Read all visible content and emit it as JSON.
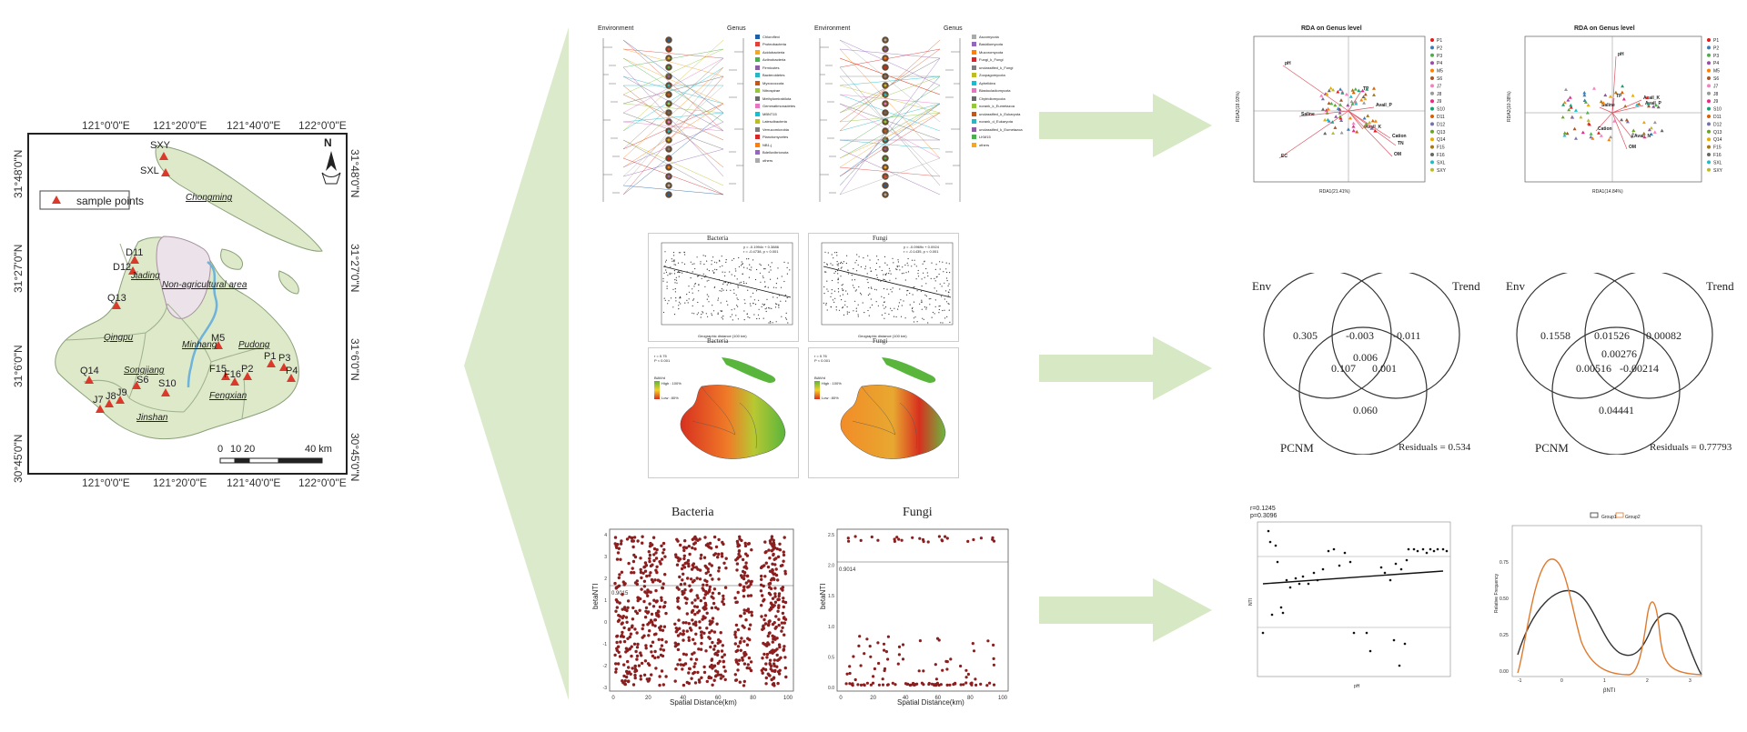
{
  "map": {
    "top_ticks": [
      "121°0'0\"E",
      "121°20'0\"E",
      "121°40'0\"E",
      "122°0'0\"E"
    ],
    "bottom_ticks": [
      "121°0'0\"E",
      "121°20'0\"E",
      "121°40'0\"E",
      "122°0'0\"E"
    ],
    "left_ticks": [
      "31°48'0\"N",
      "31°27'0\"N",
      "31°6'0\"N",
      "30°45'0\"N"
    ],
    "right_ticks": [
      "31°48'0\"N",
      "31°27'0\"N",
      "31°6'0\"N",
      "30°45'0\"N"
    ],
    "legend_label": "sample points",
    "north": "N",
    "districts": [
      "Chongming",
      "Jiading",
      "Non-agricultural area",
      "Qingpu",
      "Minhang",
      "Pudong",
      "Songjiang",
      "Fengxian",
      "Jinshan"
    ],
    "points": [
      "SXY",
      "SXL",
      "D11",
      "D12",
      "Q13",
      "M5",
      "P1",
      "P3",
      "P2",
      "P4",
      "F15",
      "F16",
      "Q14",
      "S6",
      "S10",
      "J7",
      "J8",
      "J9"
    ],
    "scale_labels": [
      "0",
      "10",
      "20",
      "40 km"
    ],
    "colors": {
      "land": "#dde9c8",
      "urban": "#ece3ea",
      "river": "#6fb3da",
      "marker": "#d93a2b"
    }
  },
  "network": {
    "left": {
      "env_label": "Environment",
      "genus_label": "Genus",
      "legend": [
        "Chloroflexi",
        "Proteobacteria",
        "Acidobacteria",
        "Actinobacteria",
        "Firmicutes",
        "Bacteroidetes",
        "Myxococcota",
        "Nitrospirae",
        "Methylomirabilota",
        "Gemmatimonadetes",
        "MBNT15",
        "Latescibacteria",
        "Verrucomicrobia",
        "Planctomycetes",
        "NB1-j",
        "Bdellovibrionota",
        "others"
      ]
    },
    "right": {
      "env_label": "Environment",
      "genus_label": "Genus",
      "legend": [
        "Ascomycota",
        "Basidiomycota",
        "Mucoromycota",
        "Fungi_k_Fungi",
        "unclassified_k_Fungi",
        "Zoopagomycota",
        "Aphelidea",
        "Blastocladiomycota",
        "Chytridiomycota",
        "norank_k_Eumetazoa",
        "unclassified_k_Eukaryota",
        "norank_d_Eukaryota",
        "unclassified_k_Eumetazoa",
        "LKM15",
        "others"
      ]
    }
  },
  "decay": {
    "bacteria": {
      "title": "Bacteria",
      "stats": [
        "y = -0.1994x + 0.3886",
        "r = -0.4738, p < 0.001"
      ],
      "xlabel": "Geographic distance (100 km)"
    },
    "fungi": {
      "title": "Fungi",
      "stats": [
        "y = -0.0969x + 0.0924",
        "r = -0.1435, p < 0.001"
      ],
      "xlabel": "Geographic distance (100 km)"
    }
  },
  "heatmaps": {
    "bacteria": {
      "title": "Bacteria",
      "stats": [
        "r = 0.75",
        "P < 0.001"
      ],
      "legend_title": "BiAVrd",
      "high": "High : 100%",
      "low": "Low : 80%"
    },
    "fungi": {
      "title": "Fungi",
      "stats": [
        "r = 0.76",
        "P < 0.001"
      ],
      "legend_title": "BiAVrd",
      "high": "High : 100%",
      "low": "Low : 80%"
    }
  },
  "betanti": {
    "bacteria": {
      "title": "Bacteria",
      "ylabel": "betaNTI",
      "xlabel": "Spatial Distance(km)",
      "annotation": "0.9015",
      "xticks": [
        "0",
        "20",
        "40",
        "60",
        "80",
        "100"
      ],
      "yticks": [
        "4",
        "3",
        "2",
        "1",
        "0",
        "-1",
        "-2",
        "-3"
      ]
    },
    "fungi": {
      "title": "Fungi",
      "ylabel": "betaNTI",
      "xlabel": "Spatial Distance(km)",
      "annotation": "0.9014",
      "xticks": [
        "0",
        "20",
        "40",
        "60",
        "80",
        "100"
      ],
      "yticks": [
        "2.5",
        "2.0",
        "1.5",
        "1.0",
        "0.5",
        "0.0"
      ]
    }
  },
  "rda": {
    "bacteria": {
      "title": "RDA on Genus level",
      "xlabel": "RDA1(21.41%)",
      "ylabel": "RDA2(18.93%)",
      "vectors": [
        "pH",
        "TP",
        "Avail_P",
        "Saline",
        "Avail_K",
        "Cation",
        "TN",
        "OM",
        "EC"
      ],
      "legend": [
        "P1",
        "P2",
        "P3",
        "P4",
        "M5",
        "S6",
        "J7",
        "J8",
        "J9",
        "S10",
        "D11",
        "D12",
        "Q13",
        "Q14",
        "F15",
        "F16",
        "SXL",
        "SXY"
      ]
    },
    "fungi": {
      "title": "RDA on Genus level",
      "xlabel": "RDA1(14.84%)",
      "ylabel": "RDA2(10.38%)",
      "vectors": [
        "pH",
        "TP",
        "Avail_K",
        "Saline",
        "Avail_P",
        "Cation",
        "Avail_N",
        "OM"
      ],
      "legend": [
        "P1",
        "P2",
        "P3",
        "P4",
        "M5",
        "S6",
        "J7",
        "J8",
        "J9",
        "S10",
        "D11",
        "D12",
        "Q13",
        "Q14",
        "F15",
        "F16",
        "SXL",
        "SXY"
      ]
    }
  },
  "venn": {
    "bacteria": {
      "sets": [
        "Env",
        "Trend",
        "PCNM"
      ],
      "values": [
        "0.305",
        "-0.003",
        "-0.011",
        "0.006",
        "0.107",
        "0.001",
        "0.060"
      ],
      "residuals": "Residuals =  0.534"
    },
    "fungi": {
      "sets": [
        "Env",
        "Trend",
        "PCNM"
      ],
      "values": [
        "0.1558",
        "0.01526",
        "0.00082",
        "0.00276",
        "0.00516",
        "-0.00214",
        "0.04441"
      ],
      "residuals": "Residuals =  0.77793"
    }
  },
  "regression": {
    "stats": [
      "r=0.1245",
      "p=0.3096"
    ],
    "xlabel": "pH",
    "ylabel": "NTI"
  },
  "density": {
    "legend": [
      "Group1",
      "Group2"
    ],
    "ylabel": "Relative Frequency",
    "xlabel": "βNTI",
    "xticks": [
      "-1",
      "0",
      "1",
      "2",
      "3"
    ],
    "yticks": [
      "0.75",
      "0.50",
      "0.25",
      "0.00"
    ]
  }
}
